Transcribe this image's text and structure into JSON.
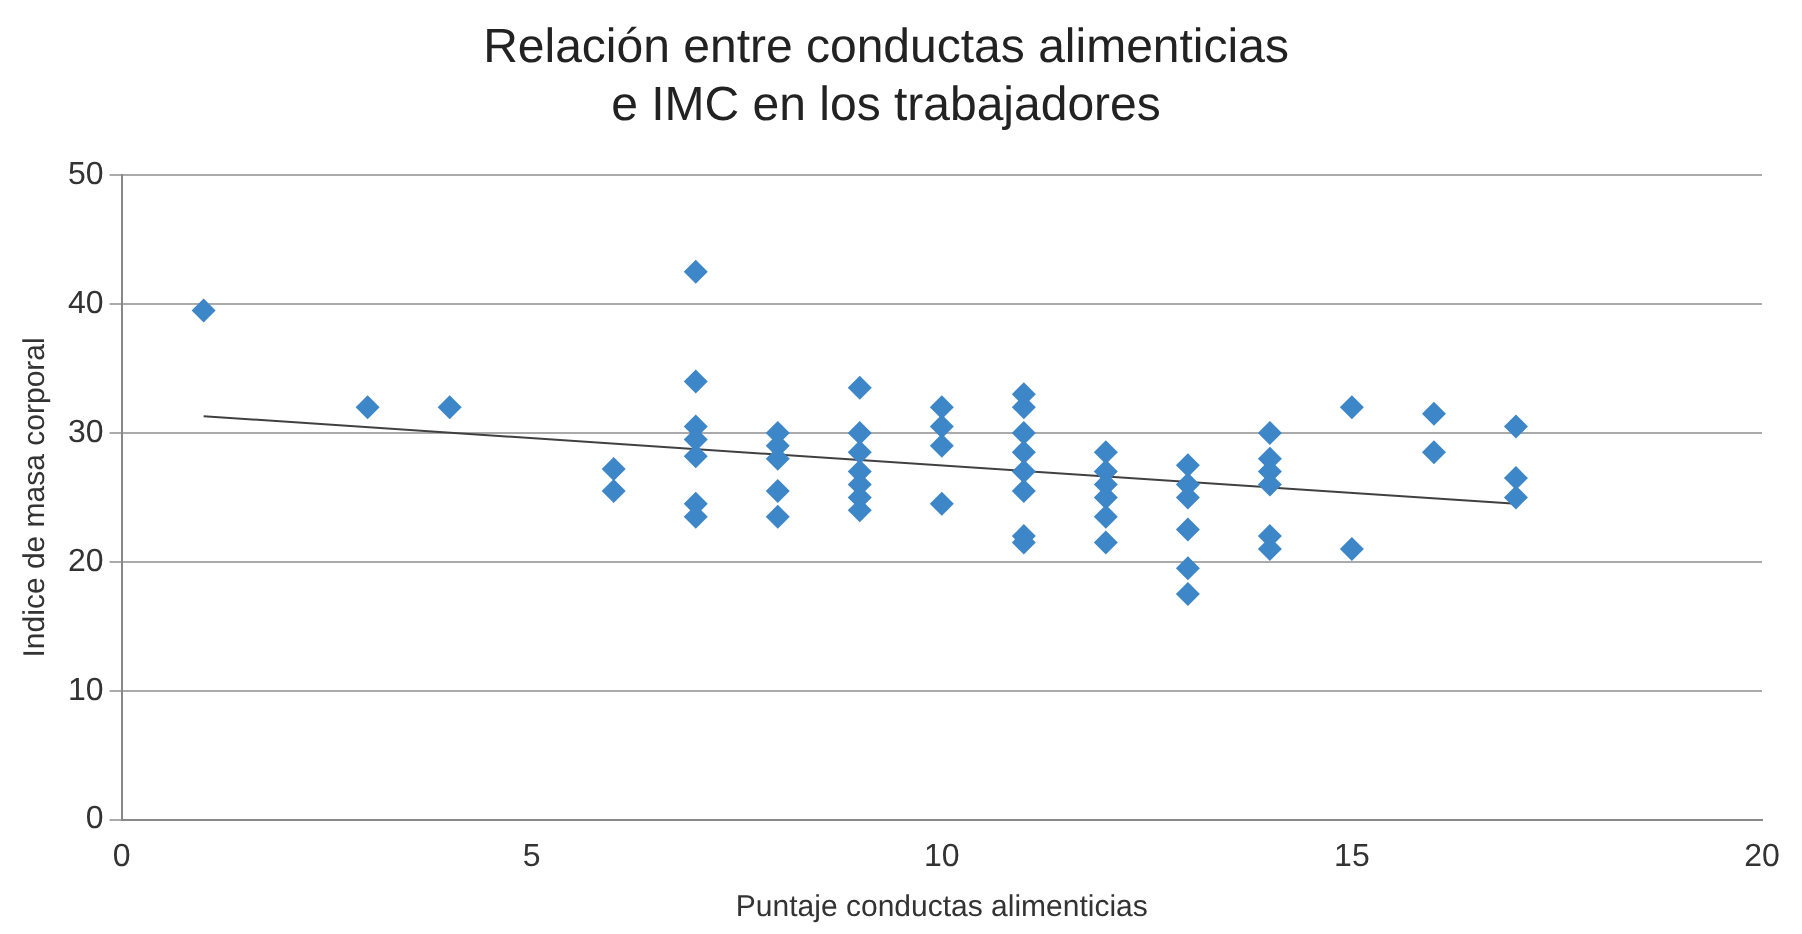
{
  "chart_data": {
    "type": "scatter",
    "title": "Relación entre conductas alimenticias\ne IMC en los trabajadores",
    "xlabel": "Puntaje conductas alimenticias",
    "ylabel": "Indice de masa corporal",
    "xlim": [
      0,
      20
    ],
    "xticks": [
      0,
      5,
      10,
      15,
      20
    ],
    "ylim": [
      0,
      50
    ],
    "yticks": [
      0,
      10,
      20,
      30,
      40,
      50
    ],
    "grid": "y",
    "legend": false,
    "marker": "diamond",
    "series": [
      {
        "color": "#3d86c8",
        "x": [
          1,
          3,
          4,
          6,
          6,
          7,
          7,
          7,
          7,
          7,
          7,
          7,
          8,
          8,
          8,
          8,
          8,
          9,
          9,
          9,
          9,
          9,
          9,
          9,
          10,
          10,
          10,
          10,
          11,
          11,
          11,
          11,
          11,
          11,
          11,
          11,
          12,
          12,
          12,
          12,
          12,
          12,
          13,
          13,
          13,
          13,
          13,
          13,
          14,
          14,
          14,
          14,
          14,
          14,
          15,
          15,
          16,
          16,
          17,
          17,
          17
        ],
        "values": [
          39.5,
          32,
          32,
          27.2,
          25.5,
          42.5,
          34,
          30.5,
          29.5,
          28.2,
          24.5,
          23.5,
          30,
          29,
          28,
          25.5,
          23.5,
          33.5,
          30,
          28.5,
          27,
          26,
          25,
          24,
          32,
          30.5,
          29,
          24.5,
          33,
          32,
          30,
          28.5,
          27,
          25.5,
          22,
          21.5,
          28.5,
          27,
          26,
          25,
          23.5,
          21.5,
          27.5,
          26,
          25,
          22.5,
          19.5,
          17.5,
          30,
          28,
          27,
          26,
          22,
          21,
          32,
          21,
          31.5,
          28.5,
          30.5,
          26.5,
          25
        ]
      },
      {
        "type": "line",
        "color": "#404040",
        "marker": "none",
        "x": [
          1,
          17
        ],
        "values": [
          31.3,
          24.5
        ]
      }
    ]
  }
}
